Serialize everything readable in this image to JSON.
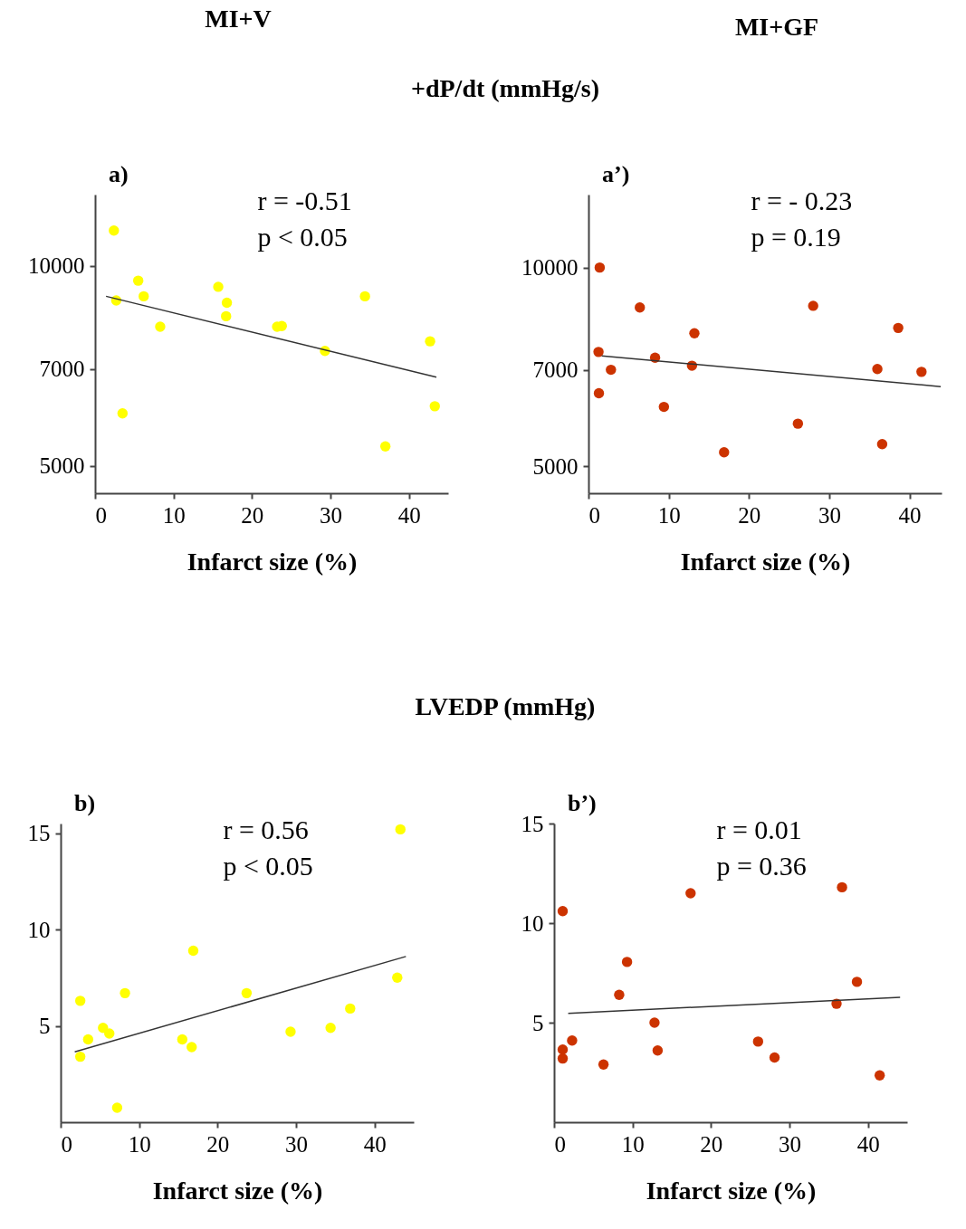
{
  "chart_data": [
    {
      "type": "scatter",
      "title": "+dP/dt (mmHg/s)",
      "subtitle": "MI+V",
      "xlabel": "Infarct size (%)",
      "annotations": [
        "a)",
        "r = -0.51",
        "p < 0.05"
      ],
      "log": "y",
      "xlim": [
        0,
        45
      ],
      "xticks": [
        0,
        10,
        20,
        30,
        40
      ],
      "ylim": [
        4550,
        12800
      ],
      "yticks": [
        5000,
        7000,
        10000
      ],
      "series": [
        {
          "marker": "circle",
          "color": "#ffff00",
          "x": [
            2.4,
            2.7,
            3.5,
            5.5,
            6.2,
            8.3,
            15.7,
            16.8,
            16.7,
            23.2,
            23.8,
            29.3,
            34.4,
            37.0,
            42.7,
            43.3
          ],
          "values": [
            11300,
            8870,
            6000,
            9500,
            9000,
            8100,
            9300,
            8800,
            8400,
            8100,
            8120,
            7450,
            9000,
            5350,
            7700,
            6150
          ]
        },
        {
          "type": "line",
          "color": "#333333",
          "x": [
            1.4,
            43.5
          ],
          "values": [
            9000,
            6800
          ]
        }
      ]
    },
    {
      "type": "scatter",
      "subtitle": "MI+GF",
      "xlabel": "Infarct size (%)",
      "annotations": [
        "a’)",
        "r = - 0.23",
        "p = 0.19"
      ],
      "log": "y",
      "xlim": [
        0,
        44
      ],
      "xticks": [
        0,
        10,
        20,
        30,
        40
      ],
      "ylim": [
        4550,
        12900
      ],
      "yticks": [
        5000,
        7000,
        10000
      ],
      "series": [
        {
          "marker": "circle",
          "color": "#cc3300",
          "x": [
            1.4,
            6.4,
            28.0,
            13.2,
            38.6,
            1.25,
            8.3,
            12.9,
            2.8,
            36.0,
            41.5,
            1.3,
            9.4,
            26.1,
            16.9,
            36.6
          ],
          "values": [
            10000,
            8700,
            8750,
            7950,
            8100,
            7450,
            7300,
            7100,
            7000,
            7020,
            6950,
            6450,
            6150,
            5800,
            5250,
            5400
          ]
        },
        {
          "type": "line",
          "color": "#333333",
          "x": [
            1.65,
            43.9
          ],
          "values": [
            7350,
            6600
          ]
        }
      ]
    },
    {
      "type": "scatter",
      "title": "LVEDP (mmHg)",
      "xlabel": "Infarct size (%)",
      "annotations": [
        "b)",
        "r = 0.56",
        "p < 0.05"
      ],
      "xlim": [
        0,
        45
      ],
      "xticks": [
        0,
        10,
        20,
        30,
        40
      ],
      "ylim": [
        0,
        15.5
      ],
      "yticks": [
        5,
        10,
        15
      ],
      "series": [
        {
          "marker": "circle",
          "color": "#ffff00",
          "x": [
            43.3,
            2.5,
            2.5,
            3.5,
            5.4,
            6.2,
            8.2,
            7.2,
            15.5,
            16.7,
            16.9,
            23.7,
            29.3,
            34.4,
            36.9,
            42.9
          ],
          "values": [
            15.2,
            6.3,
            3.4,
            4.3,
            4.9,
            4.6,
            6.7,
            0.75,
            4.3,
            3.9,
            8.9,
            6.7,
            4.7,
            4.9,
            5.9,
            7.5
          ]
        },
        {
          "type": "line",
          "color": "#333333",
          "x": [
            1.8,
            44.0
          ],
          "values": [
            3.65,
            8.6
          ]
        }
      ]
    },
    {
      "type": "scatter",
      "xlabel": "Infarct size (%)",
      "annotations": [
        "b’)",
        "r = 0.01",
        "p = 0.36"
      ],
      "xlim": [
        0,
        45
      ],
      "xticks": [
        0,
        10,
        20,
        30,
        40
      ],
      "ylim": [
        0,
        15
      ],
      "yticks": [
        5,
        10,
        15
      ],
      "series": [
        {
          "marker": "circle",
          "color": "#cc3300",
          "x": [
            1.1,
            1.1,
            1.1,
            2.3,
            6.3,
            8.3,
            9.3,
            12.8,
            13.2,
            17.4,
            26.0,
            28.1,
            36.0,
            36.7,
            38.6,
            41.5
          ],
          "values": [
            10.6,
            3.65,
            3.2,
            4.1,
            2.9,
            6.4,
            8.05,
            5.0,
            3.6,
            11.5,
            4.05,
            3.25,
            5.95,
            11.8,
            7.05,
            2.35
          ]
        },
        {
          "type": "line",
          "color": "#333333",
          "x": [
            1.8,
            44.1
          ],
          "values": [
            5.47,
            6.27
          ]
        }
      ]
    }
  ]
}
